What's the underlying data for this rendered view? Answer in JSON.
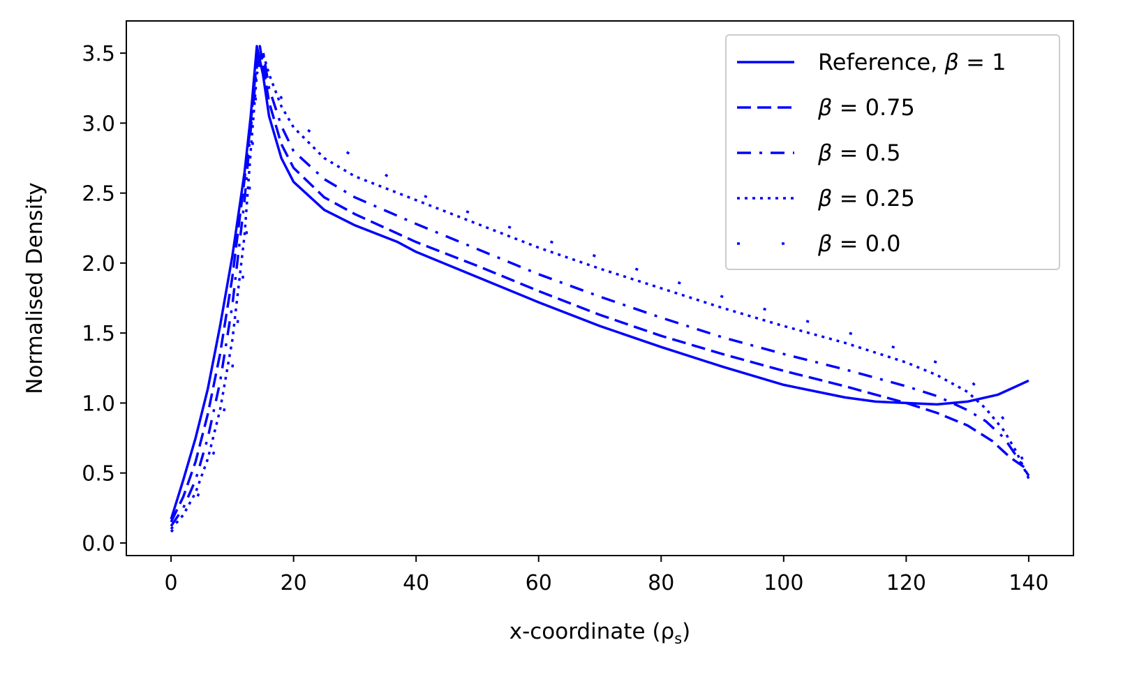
{
  "chart_data": {
    "type": "line",
    "xlabel": "x-coordinate (ρ",
    "xlabel_sub": "s",
    "xlabel_close": ")",
    "ylabel": "Normalised Density",
    "xlim": [
      -7.3,
      147.3
    ],
    "ylim": [
      -0.09,
      3.73
    ],
    "xticks": [
      0,
      20,
      40,
      60,
      80,
      100,
      120,
      140
    ],
    "yticks": [
      0.0,
      0.5,
      1.0,
      1.5,
      2.0,
      2.5,
      3.0,
      3.5
    ],
    "xtick_labels": [
      "0",
      "20",
      "40",
      "60",
      "80",
      "100",
      "120",
      "140"
    ],
    "ytick_labels": [
      "0.0",
      "0.5",
      "1.0",
      "1.5",
      "2.0",
      "2.5",
      "3.0",
      "3.5"
    ],
    "grid": false,
    "legend_position": "top-right",
    "color": "#0000ff",
    "series": [
      {
        "name": "Reference, β = 1",
        "name_prefix": "Reference, ",
        "beta_value": "1",
        "style": "solid",
        "x": [
          0,
          2,
          4,
          6,
          8,
          10,
          12,
          13,
          14,
          15,
          16,
          18,
          20,
          25,
          30,
          37,
          40,
          50,
          60,
          70,
          80,
          90,
          100,
          110,
          115,
          120,
          125,
          130,
          135,
          138,
          140
        ],
        "y": [
          0.17,
          0.45,
          0.75,
          1.1,
          1.55,
          2.05,
          2.65,
          3.05,
          3.55,
          3.35,
          3.05,
          2.75,
          2.58,
          2.38,
          2.27,
          2.15,
          2.08,
          1.9,
          1.72,
          1.55,
          1.4,
          1.26,
          1.13,
          1.04,
          1.01,
          1.0,
          0.99,
          1.01,
          1.06,
          1.12,
          1.16
        ]
      },
      {
        "name": "β = 0.75",
        "name_prefix": "",
        "beta_value": "0.75",
        "style": "dashed",
        "x": [
          0,
          2,
          4,
          6,
          8,
          10,
          12,
          13,
          14,
          14.5,
          16,
          18,
          20,
          25,
          30,
          40,
          50,
          60,
          70,
          80,
          90,
          100,
          110,
          120,
          125,
          130,
          134,
          137,
          140
        ],
        "y": [
          0.15,
          0.33,
          0.58,
          0.92,
          1.35,
          1.9,
          2.6,
          3.0,
          3.45,
          3.55,
          3.15,
          2.85,
          2.68,
          2.47,
          2.35,
          2.15,
          1.98,
          1.8,
          1.63,
          1.48,
          1.35,
          1.23,
          1.12,
          1.0,
          0.93,
          0.84,
          0.73,
          0.61,
          0.52
        ]
      },
      {
        "name": "β = 0.5",
        "name_prefix": "",
        "beta_value": "0.5",
        "style": "dashdot",
        "x": [
          0,
          2,
          4,
          6,
          8,
          10,
          12,
          13,
          14,
          15,
          16,
          18,
          20,
          25,
          30,
          40,
          50,
          60,
          70,
          80,
          90,
          100,
          110,
          120,
          125,
          130,
          133,
          136,
          138,
          140
        ],
        "y": [
          0.12,
          0.25,
          0.45,
          0.75,
          1.15,
          1.7,
          2.45,
          2.95,
          3.4,
          3.52,
          3.25,
          2.98,
          2.8,
          2.6,
          2.47,
          2.28,
          2.1,
          1.92,
          1.76,
          1.61,
          1.47,
          1.35,
          1.24,
          1.12,
          1.05,
          0.95,
          0.87,
          0.75,
          0.62,
          0.48
        ]
      },
      {
        "name": "β = 0.25",
        "name_prefix": "",
        "beta_value": "0.25",
        "style": "dotted",
        "x": [
          0,
          2,
          4,
          6,
          8,
          10,
          12,
          13,
          14,
          15,
          16,
          18,
          20,
          25,
          30,
          40,
          50,
          60,
          70,
          80,
          90,
          100,
          110,
          120,
          125,
          130,
          133,
          136,
          138,
          140
        ],
        "y": [
          0.1,
          0.2,
          0.36,
          0.6,
          0.95,
          1.45,
          2.2,
          2.8,
          3.35,
          3.5,
          3.35,
          3.12,
          2.97,
          2.75,
          2.62,
          2.45,
          2.28,
          2.11,
          1.96,
          1.82,
          1.68,
          1.55,
          1.43,
          1.29,
          1.2,
          1.08,
          0.96,
          0.8,
          0.65,
          0.46
        ]
      },
      {
        "name": "β = 0.0",
        "name_prefix": "",
        "beta_value": "0.0",
        "style": "sparse-dotted",
        "x": [
          0,
          2,
          4,
          6,
          8,
          10,
          12,
          13,
          14,
          15,
          16,
          18,
          20,
          23,
          30,
          40,
          50,
          60,
          70,
          80,
          90,
          100,
          110,
          120,
          125,
          130,
          133,
          136,
          138,
          140
        ],
        "y": [
          0.08,
          0.17,
          0.3,
          0.5,
          0.8,
          1.25,
          2.0,
          2.65,
          3.3,
          3.48,
          3.4,
          3.18,
          3.02,
          2.93,
          2.76,
          2.5,
          2.34,
          2.18,
          2.04,
          1.9,
          1.76,
          1.63,
          1.51,
          1.37,
          1.29,
          1.18,
          1.05,
          0.88,
          0.71,
          0.48
        ]
      }
    ]
  }
}
